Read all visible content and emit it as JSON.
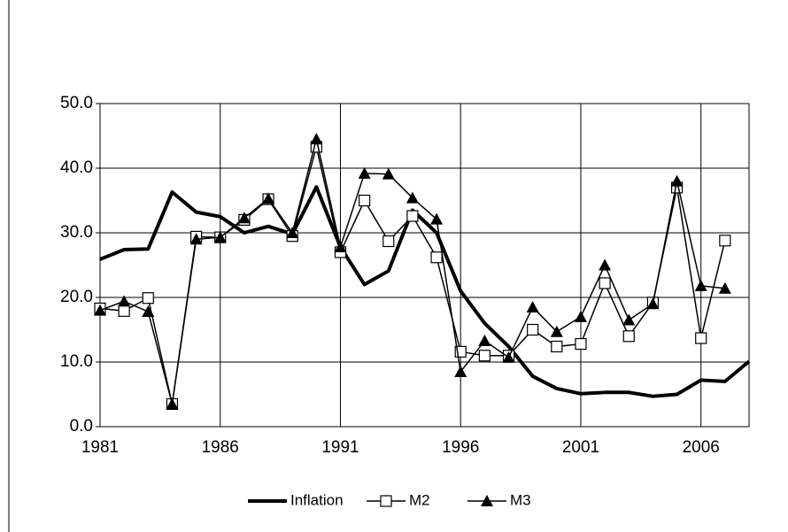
{
  "chart_data": {
    "type": "line",
    "x": [
      1981,
      1982,
      1983,
      1984,
      1985,
      1986,
      1987,
      1988,
      1989,
      1990,
      1991,
      1992,
      1993,
      1994,
      1995,
      1996,
      1997,
      1998,
      1999,
      2000,
      2001,
      2002,
      2003,
      2004,
      2005,
      2006,
      2007,
      2008
    ],
    "series": [
      {
        "name": "Inflation",
        "color": "#000000",
        "marker": "none",
        "values": [
          25.9,
          27.4,
          27.5,
          36.3,
          33.2,
          32.5,
          30.0,
          31.0,
          29.8,
          37.1,
          27.8,
          22.0,
          24.1,
          33.5,
          30.0,
          21.0,
          16.0,
          12.4,
          7.8,
          5.9,
          5.1,
          5.3,
          5.3,
          4.7,
          5.0,
          7.2,
          7.0,
          10.1
        ]
      },
      {
        "name": "M2",
        "color": "#000000",
        "marker": "square",
        "values": [
          18.3,
          17.9,
          19.9,
          3.5,
          29.4,
          29.3,
          32.0,
          35.2,
          29.5,
          43.3,
          27.0,
          35.0,
          28.7,
          32.6,
          26.2,
          11.6,
          11.0,
          11.0,
          15.0,
          12.4,
          12.8,
          22.2,
          14.0,
          19.2,
          37.0,
          13.7,
          28.8,
          null
        ]
      },
      {
        "name": "M3",
        "color": "#000000",
        "marker": "triangle",
        "values": [
          18.0,
          19.4,
          17.8,
          3.5,
          29.0,
          29.3,
          32.3,
          35.3,
          30.0,
          44.5,
          27.8,
          39.2,
          39.1,
          35.4,
          32.1,
          8.5,
          13.3,
          10.7,
          18.5,
          14.7,
          17.0,
          25.0,
          16.5,
          19.0,
          38.0,
          21.8,
          21.4,
          null
        ]
      }
    ],
    "xlim": [
      1981,
      2008
    ],
    "xticks": [
      1981,
      1986,
      1991,
      1996,
      2001,
      2006
    ],
    "ylim": [
      0,
      50
    ],
    "yticks": [
      {
        "value": 0,
        "label": "0.0"
      },
      {
        "value": 10,
        "label": "10.0"
      },
      {
        "value": 20,
        "label": "20.0"
      },
      {
        "value": 30,
        "label": "30.0"
      },
      {
        "value": 40,
        "label": "40.0"
      },
      {
        "value": 50,
        "label": "50.0"
      }
    ],
    "grid": true,
    "legend": "bottom"
  }
}
